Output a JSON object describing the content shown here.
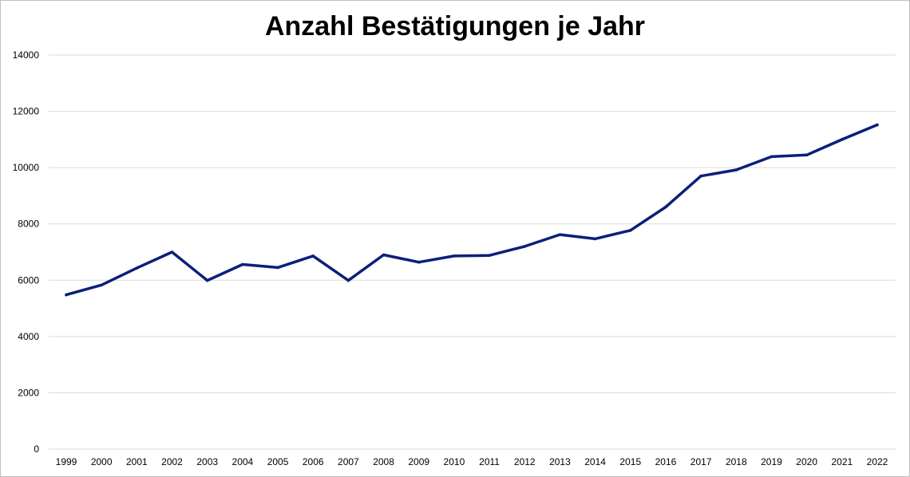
{
  "chart_data": {
    "type": "line",
    "title": "Anzahl Bestätigungen je Jahr",
    "xlabel": "",
    "ylabel": "",
    "ylim": [
      0,
      14000
    ],
    "yticks": [
      0,
      2000,
      4000,
      6000,
      8000,
      10000,
      12000,
      14000
    ],
    "grid": true,
    "legend": "none",
    "x": [
      "1999",
      "2000",
      "2001",
      "2002",
      "2003",
      "2004",
      "2005",
      "2006",
      "2007",
      "2008",
      "2009",
      "2010",
      "2011",
      "2012",
      "2013",
      "2014",
      "2015",
      "2016",
      "2017",
      "2018",
      "2019",
      "2020",
      "2021",
      "2022"
    ],
    "series": [
      {
        "color": "#0d1f7a",
        "values": [
          5480,
          5830,
          6430,
          7000,
          5990,
          6560,
          6450,
          6860,
          5990,
          6900,
          6640,
          6860,
          6880,
          7200,
          7620,
          7470,
          7770,
          8600,
          9700,
          9920,
          10390,
          10450,
          11000,
          11520
        ]
      }
    ]
  }
}
